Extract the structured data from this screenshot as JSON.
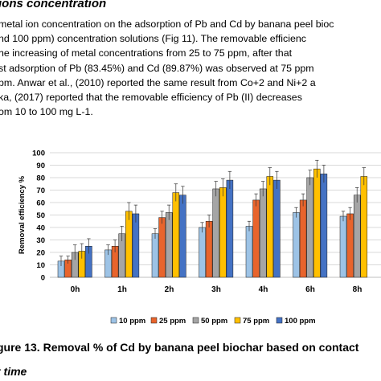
{
  "text": {
    "heading": "ions concentration",
    "paragraph_lines": [
      "metal ion concentration on the adsorption of Pb and Cd by banana peel bioc",
      "nd 100 ppm) concentration solutions (Fig 11). The removable efficienc",
      "he increasing of metal concentrations from 25 to 75 ppm, after that",
      "st adsorption of Pb (83.45%) and Cd (89.87%) was observed at 75 ppm",
      "pm. Anwar et al., (2010) reported the same result from Co+2 and Ni+2 a",
      "ka, (2017) reported that the removable efficiency of Pb (II) decreases",
      "om 10 to 100 mg L-1."
    ],
    "caption": "gure 13. Removal % of Cd by banana peel biochar based on contact",
    "caption_cont": "t time"
  },
  "chart_data": {
    "type": "bar",
    "title": "",
    "xlabel": "",
    "ylabel": "Removal  efficiency %",
    "ylim": [
      0,
      100
    ],
    "yticks": [
      0,
      10,
      20,
      30,
      40,
      50,
      60,
      70,
      80,
      90,
      100
    ],
    "grid": true,
    "legend_position": "bottom",
    "error_bars": true,
    "categories": [
      "0h",
      "1h",
      "2h",
      "3h",
      "4h",
      "6h",
      "8h"
    ],
    "series": [
      {
        "name": "10 ppm",
        "color": "#9dc3e6",
        "values": [
          13,
          22,
          35,
          40,
          41,
          52,
          49
        ],
        "errors": [
          4,
          4,
          4,
          4,
          4,
          4,
          4
        ]
      },
      {
        "name": "25 ppm",
        "color": "#e8642c",
        "values": [
          14,
          25,
          48,
          45,
          62,
          62,
          51
        ],
        "errors": [
          3,
          5,
          5,
          5,
          5,
          5,
          5
        ]
      },
      {
        "name": "50 ppm",
        "color": "#a5a5a5",
        "values": [
          20,
          35,
          52,
          71,
          71,
          80,
          66
        ],
        "errors": [
          6,
          6,
          6,
          6,
          6,
          6,
          6
        ]
      },
      {
        "name": "75 ppm",
        "color": "#ffc000",
        "values": [
          21,
          53,
          68,
          72,
          81,
          87,
          81
        ],
        "errors": [
          6,
          7,
          7,
          7,
          7,
          7,
          7
        ]
      },
      {
        "name": "100 ppm",
        "color": "#4472c4",
        "values": [
          25,
          51,
          66,
          78,
          78,
          83,
          0
        ],
        "errors": [
          6,
          7,
          7,
          7,
          7,
          7,
          0
        ]
      }
    ]
  }
}
